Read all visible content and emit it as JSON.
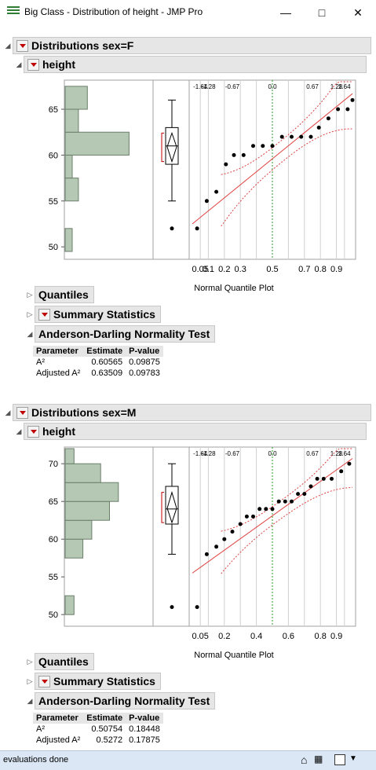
{
  "window": {
    "title": "Big Class - Distribution of height - JMP Pro"
  },
  "status": {
    "text": "evaluations done"
  },
  "sections": [
    {
      "heading": "Distributions sex=F",
      "sub_heading": "height",
      "y_ticks": [
        "65",
        "60",
        "55",
        "50"
      ],
      "y_range": [
        49.5,
        68
      ],
      "hist_bins": [
        [
          49.5,
          52,
          0.08
        ],
        [
          52,
          55,
          0
        ],
        [
          55,
          57.5,
          0.15
        ],
        [
          57.5,
          60,
          0.08
        ],
        [
          60,
          62.5,
          0.72
        ],
        [
          62.5,
          65,
          0.15
        ],
        [
          65,
          67.5,
          0.25
        ]
      ],
      "box": {
        "min": 55,
        "q1": 59,
        "median": 61,
        "q3": 63,
        "max": 66,
        "mean": 60.9,
        "ci": [
          59.3,
          62.4
        ],
        "outliers": [
          52
        ]
      },
      "qq_top_labels": [
        "-1.64",
        "-1.28",
        "-0.67",
        "0.0",
        "0.67",
        "1.28",
        "1.64"
      ],
      "qq_bottom_labels": [
        "0.05",
        "0.1",
        "0.2",
        "0.3",
        "0.5",
        "0.7",
        "0.8",
        "0.9"
      ],
      "qq_xlabel": "Normal Quantile Plot",
      "qq_points": [
        [
          0.03,
          52
        ],
        [
          0.09,
          55
        ],
        [
          0.15,
          56
        ],
        [
          0.21,
          59
        ],
        [
          0.26,
          60
        ],
        [
          0.32,
          60
        ],
        [
          0.38,
          61
        ],
        [
          0.44,
          61
        ],
        [
          0.5,
          61
        ],
        [
          0.56,
          62
        ],
        [
          0.62,
          62
        ],
        [
          0.68,
          62
        ],
        [
          0.74,
          62
        ],
        [
          0.79,
          63
        ],
        [
          0.85,
          64
        ],
        [
          0.91,
          65
        ],
        [
          0.97,
          65
        ],
        [
          1.0,
          66
        ]
      ],
      "quantiles_label": "Quantiles",
      "summary_label": "Summary Statistics",
      "ad_label": "Anderson-Darling Normality Test",
      "ad_headers": [
        "Parameter",
        "Estimate",
        "P-value"
      ],
      "ad_rows": [
        [
          "A²",
          "0.60565",
          "0.09875"
        ],
        [
          "Adjusted A²",
          "0.63509",
          "0.09783"
        ]
      ]
    },
    {
      "heading": "Distributions sex=M",
      "sub_heading": "height",
      "y_ticks": [
        "70",
        "65",
        "60",
        "55",
        "50"
      ],
      "y_range": [
        49.5,
        72
      ],
      "hist_bins": [
        [
          50,
          52.5,
          0.1
        ],
        [
          52.5,
          57.5,
          0
        ],
        [
          57.5,
          60,
          0.2
        ],
        [
          60,
          62.5,
          0.3
        ],
        [
          62.5,
          65,
          0.5
        ],
        [
          65,
          67.5,
          0.6
        ],
        [
          67.5,
          70,
          0.4
        ],
        [
          70,
          72,
          0.1
        ]
      ],
      "box": {
        "min": 58,
        "q1": 62,
        "median": 64,
        "q3": 67,
        "max": 70,
        "mean": 64.1,
        "ci": [
          62.2,
          66.2
        ],
        "outliers": [
          51
        ]
      },
      "qq_top_labels": [
        "-1.64",
        "-1.28",
        "-0.67",
        "0.0",
        "0.67",
        "1.28",
        "1.64"
      ],
      "qq_bottom_labels": [
        "0.05",
        "0.2",
        "0.4",
        "0.6",
        "0.8",
        "0.9"
      ],
      "qq_xlabel": "Normal Quantile Plot",
      "qq_points": [
        [
          0.03,
          51
        ],
        [
          0.09,
          58
        ],
        [
          0.15,
          59
        ],
        [
          0.2,
          60
        ],
        [
          0.25,
          61
        ],
        [
          0.3,
          62
        ],
        [
          0.34,
          63
        ],
        [
          0.38,
          63
        ],
        [
          0.42,
          64
        ],
        [
          0.46,
          64
        ],
        [
          0.5,
          64
        ],
        [
          0.54,
          65
        ],
        [
          0.58,
          65
        ],
        [
          0.62,
          65
        ],
        [
          0.66,
          66
        ],
        [
          0.7,
          66
        ],
        [
          0.74,
          67
        ],
        [
          0.78,
          68
        ],
        [
          0.82,
          68
        ],
        [
          0.87,
          68
        ],
        [
          0.93,
          69
        ],
        [
          0.98,
          70
        ]
      ],
      "quantiles_label": "Quantiles",
      "summary_label": "Summary Statistics",
      "ad_label": "Anderson-Darling Normality Test",
      "ad_headers": [
        "Parameter",
        "Estimate",
        "P-value"
      ],
      "ad_rows": [
        [
          "A²",
          "0.50754",
          "0.18448"
        ],
        [
          "Adjusted A²",
          "0.5272",
          "0.17875"
        ]
      ]
    }
  ]
}
